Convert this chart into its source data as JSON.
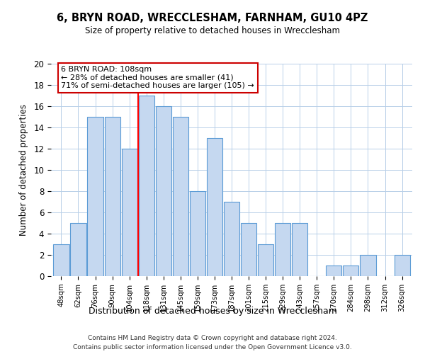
{
  "title": "6, BRYN ROAD, WRECCLESHAM, FARNHAM, GU10 4PZ",
  "subtitle": "Size of property relative to detached houses in Wrecclesham",
  "xlabel": "Distribution of detached houses by size in Wrecclesham",
  "ylabel": "Number of detached properties",
  "categories": [
    "48sqm",
    "62sqm",
    "76sqm",
    "90sqm",
    "104sqm",
    "118sqm",
    "131sqm",
    "145sqm",
    "159sqm",
    "173sqm",
    "187sqm",
    "201sqm",
    "215sqm",
    "229sqm",
    "243sqm",
    "257sqm",
    "270sqm",
    "284sqm",
    "298sqm",
    "312sqm",
    "326sqm"
  ],
  "values": [
    3,
    5,
    15,
    15,
    12,
    17,
    16,
    15,
    8,
    13,
    7,
    5,
    3,
    5,
    5,
    0,
    1,
    1,
    2,
    0,
    2
  ],
  "bar_color": "#c5d8f0",
  "bar_edge_color": "#5b9bd5",
  "redline_index": 4.5,
  "annotation_line1": "6 BRYN ROAD: 108sqm",
  "annotation_line2": "← 28% of detached houses are smaller (41)",
  "annotation_line3": "71% of semi-detached houses are larger (105) →",
  "annotation_box_color": "#ffffff",
  "annotation_box_edge_color": "#cc0000",
  "ylim": [
    0,
    20
  ],
  "yticks": [
    0,
    2,
    4,
    6,
    8,
    10,
    12,
    14,
    16,
    18,
    20
  ],
  "footer_line1": "Contains HM Land Registry data © Crown copyright and database right 2024.",
  "footer_line2": "Contains public sector information licensed under the Open Government Licence v3.0.",
  "bg_color": "#ffffff",
  "grid_color": "#b8cfe8"
}
